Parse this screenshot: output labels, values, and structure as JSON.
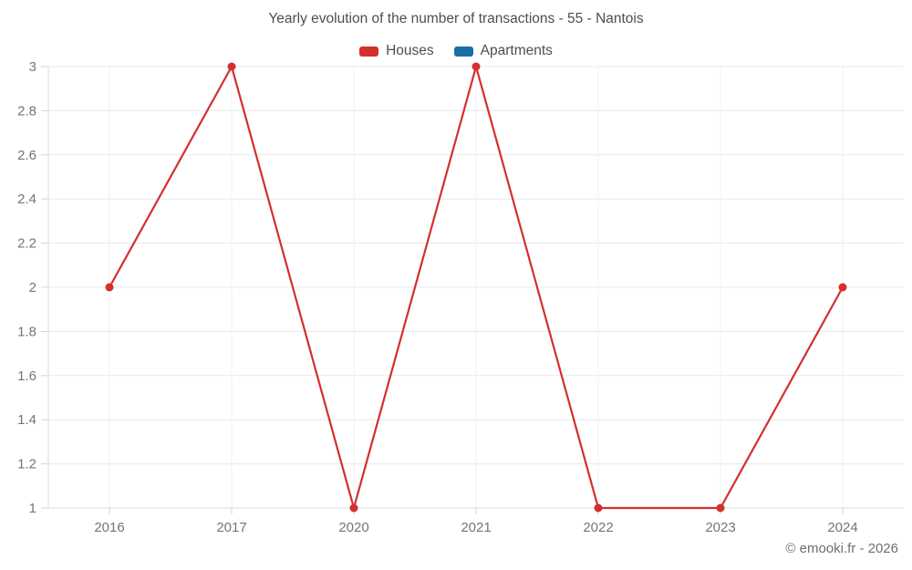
{
  "title": "Yearly evolution of the number of transactions - 55 - Nantois",
  "legend": {
    "items": [
      {
        "label": "Houses",
        "color": "#d32f2f"
      },
      {
        "label": "Apartments",
        "color": "#1a6ea5"
      }
    ]
  },
  "footer": "© emooki.fr - 2026",
  "chart_data": {
    "type": "line",
    "title": "Yearly evolution of the number of transactions - 55 - Nantois",
    "categories": [
      "2016",
      "2017",
      "2020",
      "2021",
      "2022",
      "2023",
      "2024"
    ],
    "series": [
      {
        "name": "Houses",
        "color": "#d32f2f",
        "values": [
          2,
          3,
          1,
          3,
          1,
          1,
          2
        ]
      },
      {
        "name": "Apartments",
        "color": "#1a6ea5",
        "values": []
      }
    ],
    "xlabel": "",
    "ylabel": "",
    "ylim": [
      1,
      3
    ],
    "ytick_labels": [
      "1",
      "1.2",
      "1.4",
      "1.6",
      "1.8",
      "2",
      "2.2",
      "2.4",
      "2.6",
      "2.8",
      "3"
    ],
    "grid": true,
    "legend_position": "top",
    "marker": "circle",
    "colors": {
      "grid_horizontal": "#e9e9e9",
      "grid_vertical": "#f0f0f0",
      "axis_line": "#dcdcdc",
      "tick": "#d4d4d4",
      "tick_label": "#757575"
    }
  }
}
